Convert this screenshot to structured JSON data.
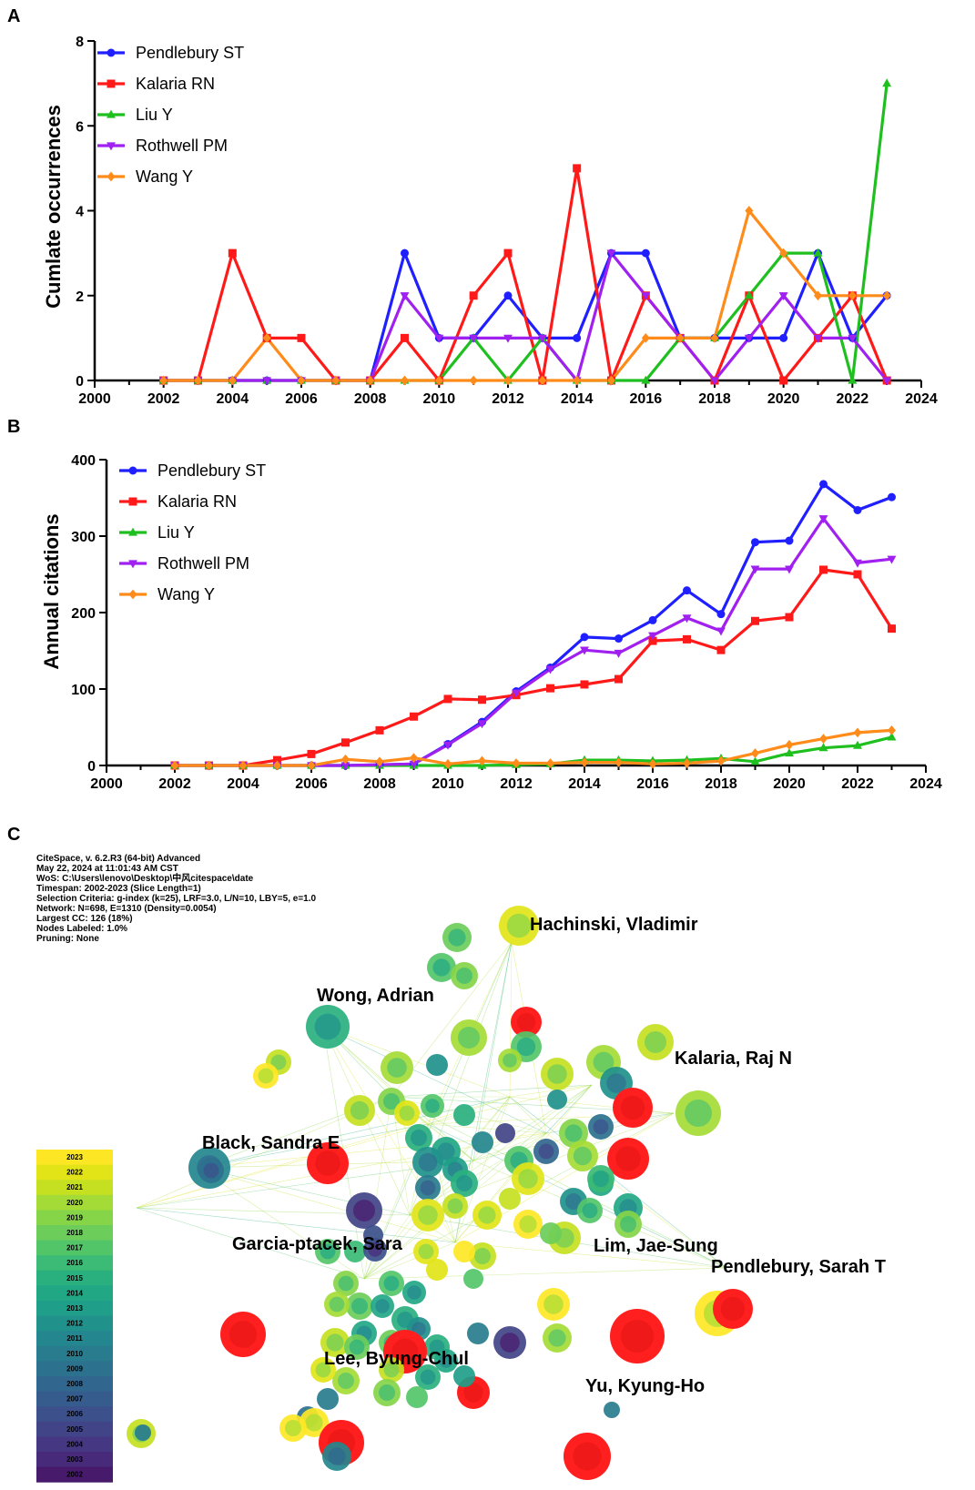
{
  "chart_data": [
    {
      "panel_label": "A",
      "type": "line",
      "title": "",
      "xlabel": "",
      "ylabel": "Cumlate occurrences",
      "xlim": [
        2000,
        2024
      ],
      "ylim": [
        0,
        8
      ],
      "xticks": [
        2000,
        2002,
        2004,
        2006,
        2008,
        2010,
        2012,
        2014,
        2016,
        2018,
        2020,
        2022,
        2024
      ],
      "yticks": [
        0,
        2,
        4,
        6,
        8
      ],
      "x": [
        2002,
        2003,
        2004,
        2005,
        2006,
        2007,
        2008,
        2009,
        2010,
        2011,
        2012,
        2013,
        2014,
        2015,
        2016,
        2017,
        2018,
        2019,
        2020,
        2021,
        2022,
        2023
      ],
      "legend_position": "top-left",
      "series": [
        {
          "name": "Pendlebury ST",
          "color": "#1f1fff",
          "marker": "circle",
          "values": [
            0,
            0,
            0,
            0,
            0,
            0,
            0,
            3,
            1,
            1,
            2,
            1,
            1,
            3,
            3,
            1,
            1,
            1,
            1,
            3,
            1,
            2
          ]
        },
        {
          "name": "Kalaria RN",
          "color": "#ff1a1a",
          "marker": "square",
          "values": [
            0,
            0,
            3,
            1,
            1,
            0,
            0,
            1,
            0,
            2,
            3,
            0,
            5,
            0,
            2,
            1,
            0,
            2,
            0,
            1,
            2,
            0
          ]
        },
        {
          "name": "Liu Y",
          "color": "#1fbf1f",
          "marker": "triangle",
          "values": [
            0,
            0,
            0,
            0,
            0,
            0,
            0,
            0,
            0,
            1,
            0,
            1,
            0,
            0,
            0,
            1,
            1,
            2,
            3,
            3,
            0,
            7
          ]
        },
        {
          "name": "Rothwell PM",
          "color": "#a020f0",
          "marker": "triangle-down",
          "values": [
            0,
            0,
            0,
            0,
            0,
            0,
            0,
            2,
            1,
            1,
            1,
            1,
            0,
            3,
            2,
            1,
            0,
            1,
            2,
            1,
            1,
            0
          ]
        },
        {
          "name": "Wang Y",
          "color": "#ff8c1a",
          "marker": "diamond",
          "values": [
            0,
            0,
            0,
            1,
            0,
            0,
            0,
            0,
            0,
            0,
            0,
            0,
            0,
            0,
            1,
            1,
            1,
            4,
            3,
            2,
            2,
            2
          ]
        }
      ]
    },
    {
      "panel_label": "B",
      "type": "line",
      "title": "",
      "xlabel": "",
      "ylabel": "Annual citations",
      "xlim": [
        2000,
        2024
      ],
      "ylim": [
        0,
        400
      ],
      "xticks": [
        2000,
        2002,
        2004,
        2006,
        2008,
        2010,
        2012,
        2014,
        2016,
        2018,
        2020,
        2022,
        2024
      ],
      "yticks": [
        0,
        100,
        200,
        300,
        400
      ],
      "x": [
        2002,
        2003,
        2004,
        2005,
        2006,
        2007,
        2008,
        2009,
        2010,
        2011,
        2012,
        2013,
        2014,
        2015,
        2016,
        2017,
        2018,
        2019,
        2020,
        2021,
        2022,
        2023
      ],
      "legend_position": "top-left",
      "series": [
        {
          "name": "Pendlebury ST",
          "color": "#1f1fff",
          "marker": "circle",
          "values": [
            0,
            0,
            0,
            0,
            0,
            0,
            1,
            2,
            28,
            57,
            97,
            128,
            168,
            166,
            190,
            229,
            198,
            292,
            294,
            368,
            334,
            351
          ]
        },
        {
          "name": "Kalaria RN",
          "color": "#ff1a1a",
          "marker": "square",
          "values": [
            0,
            0,
            0,
            7,
            15,
            30,
            46,
            64,
            87,
            86,
            92,
            101,
            106,
            113,
            163,
            165,
            151,
            189,
            194,
            256,
            250,
            179
          ]
        },
        {
          "name": "Liu Y",
          "color": "#1fbf1f",
          "marker": "triangle",
          "values": [
            0,
            0,
            0,
            0,
            0,
            0,
            0,
            0,
            0,
            0,
            1,
            2,
            7,
            7,
            6,
            7,
            9,
            5,
            16,
            23,
            26,
            37
          ]
        },
        {
          "name": "Rothwell PM",
          "color": "#a020f0",
          "marker": "triangle-down",
          "values": [
            0,
            0,
            0,
            0,
            0,
            0,
            1,
            2,
            27,
            55,
            95,
            126,
            151,
            147,
            170,
            193,
            176,
            257,
            257,
            323,
            265,
            270
          ]
        },
        {
          "name": "Wang Y",
          "color": "#ff8c1a",
          "marker": "diamond",
          "values": [
            0,
            0,
            0,
            0,
            0,
            8,
            5,
            10,
            2,
            6,
            3,
            3,
            4,
            4,
            2,
            3,
            6,
            16,
            27,
            35,
            43,
            46
          ]
        }
      ]
    }
  ],
  "panelC": {
    "panel_label": "C",
    "header_lines": [
      "CiteSpace, v. 6.2.R3 (64-bit) Advanced",
      "May 22, 2024 at 11:01:43 AM CST",
      "WoS: C:\\Users\\lenovo\\Desktop\\中风citespace\\date",
      "Timespan: 2002-2023 (Slice Length=1)",
      "Selection Criteria: g-index (k=25), LRF=3.0, L/N=10, LBY=5, e=1.0",
      "Network: N=698, E=1310 (Density=0.0054)",
      "Largest CC: 126 (18%)",
      "Nodes Labeled: 1.0%",
      "Pruning: None"
    ],
    "author_labels": [
      "Hachinski, Vladimir",
      "Wong, Adrian",
      "Kalaria, Raj N",
      "Black, Sandra E",
      "Pendlebury, Sarah T",
      "Garcia-ptacek, Sara",
      "Lim, Jae-Sung",
      "Lee, Byung-Chul",
      "Yu, Kyung-Ho"
    ],
    "year_legend": [
      "2023",
      "2022",
      "2021",
      "2020",
      "2019",
      "2018",
      "2017",
      "2016",
      "2015",
      "2014",
      "2013",
      "2012",
      "2011",
      "2010",
      "2009",
      "2008",
      "2007",
      "2006",
      "2005",
      "2004",
      "2003",
      "2002"
    ],
    "year_colors": [
      "#fde725",
      "#e2e418",
      "#c5e021",
      "#a5db36",
      "#86d549",
      "#6ccd5a",
      "#52c569",
      "#3bbb75",
      "#2ab07f",
      "#22a785",
      "#1f9e89",
      "#21918c",
      "#24868e",
      "#287c8e",
      "#2c718e",
      "#31668e",
      "#365c8d",
      "#3c508b",
      "#414487",
      "#453781",
      "#472a7a",
      "#481a6c"
    ],
    "highlight_color": "#ff1f1f"
  }
}
